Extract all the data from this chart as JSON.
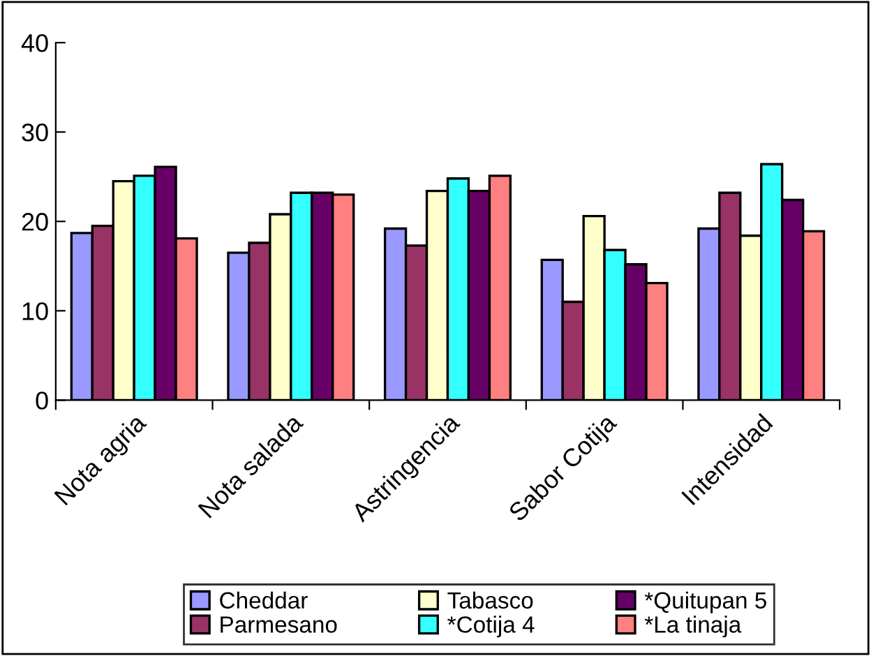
{
  "chart_data": {
    "type": "bar",
    "categories": [
      "Nota agria",
      "Nota salada",
      "Astringencia",
      "Sabor Cotija",
      "Intensidad"
    ],
    "series": [
      {
        "name": "Cheddar",
        "color": "#9999ff",
        "values": [
          18.7,
          16.5,
          19.2,
          15.7,
          19.2
        ]
      },
      {
        "name": "Parmesano",
        "color": "#993366",
        "values": [
          19.5,
          17.6,
          17.3,
          11.0,
          23.2
        ]
      },
      {
        "name": "Tabasco",
        "color": "#ffffcc",
        "values": [
          24.5,
          20.8,
          23.4,
          20.6,
          18.4
        ]
      },
      {
        "name": "*Cotija 4",
        "color": "#33ffff",
        "values": [
          25.1,
          23.2,
          24.8,
          16.8,
          26.4
        ]
      },
      {
        "name": "*Quitupan 5",
        "color": "#660066",
        "values": [
          26.1,
          23.2,
          23.4,
          15.2,
          22.4
        ]
      },
      {
        "name": "*La tinaja",
        "color": "#ff8080",
        "values": [
          18.1,
          23.0,
          25.1,
          13.1,
          18.9
        ]
      }
    ],
    "ylim": [
      0,
      40
    ],
    "yticks": [
      0,
      10,
      20,
      30,
      40
    ],
    "grid": false,
    "legend": "bottom"
  }
}
